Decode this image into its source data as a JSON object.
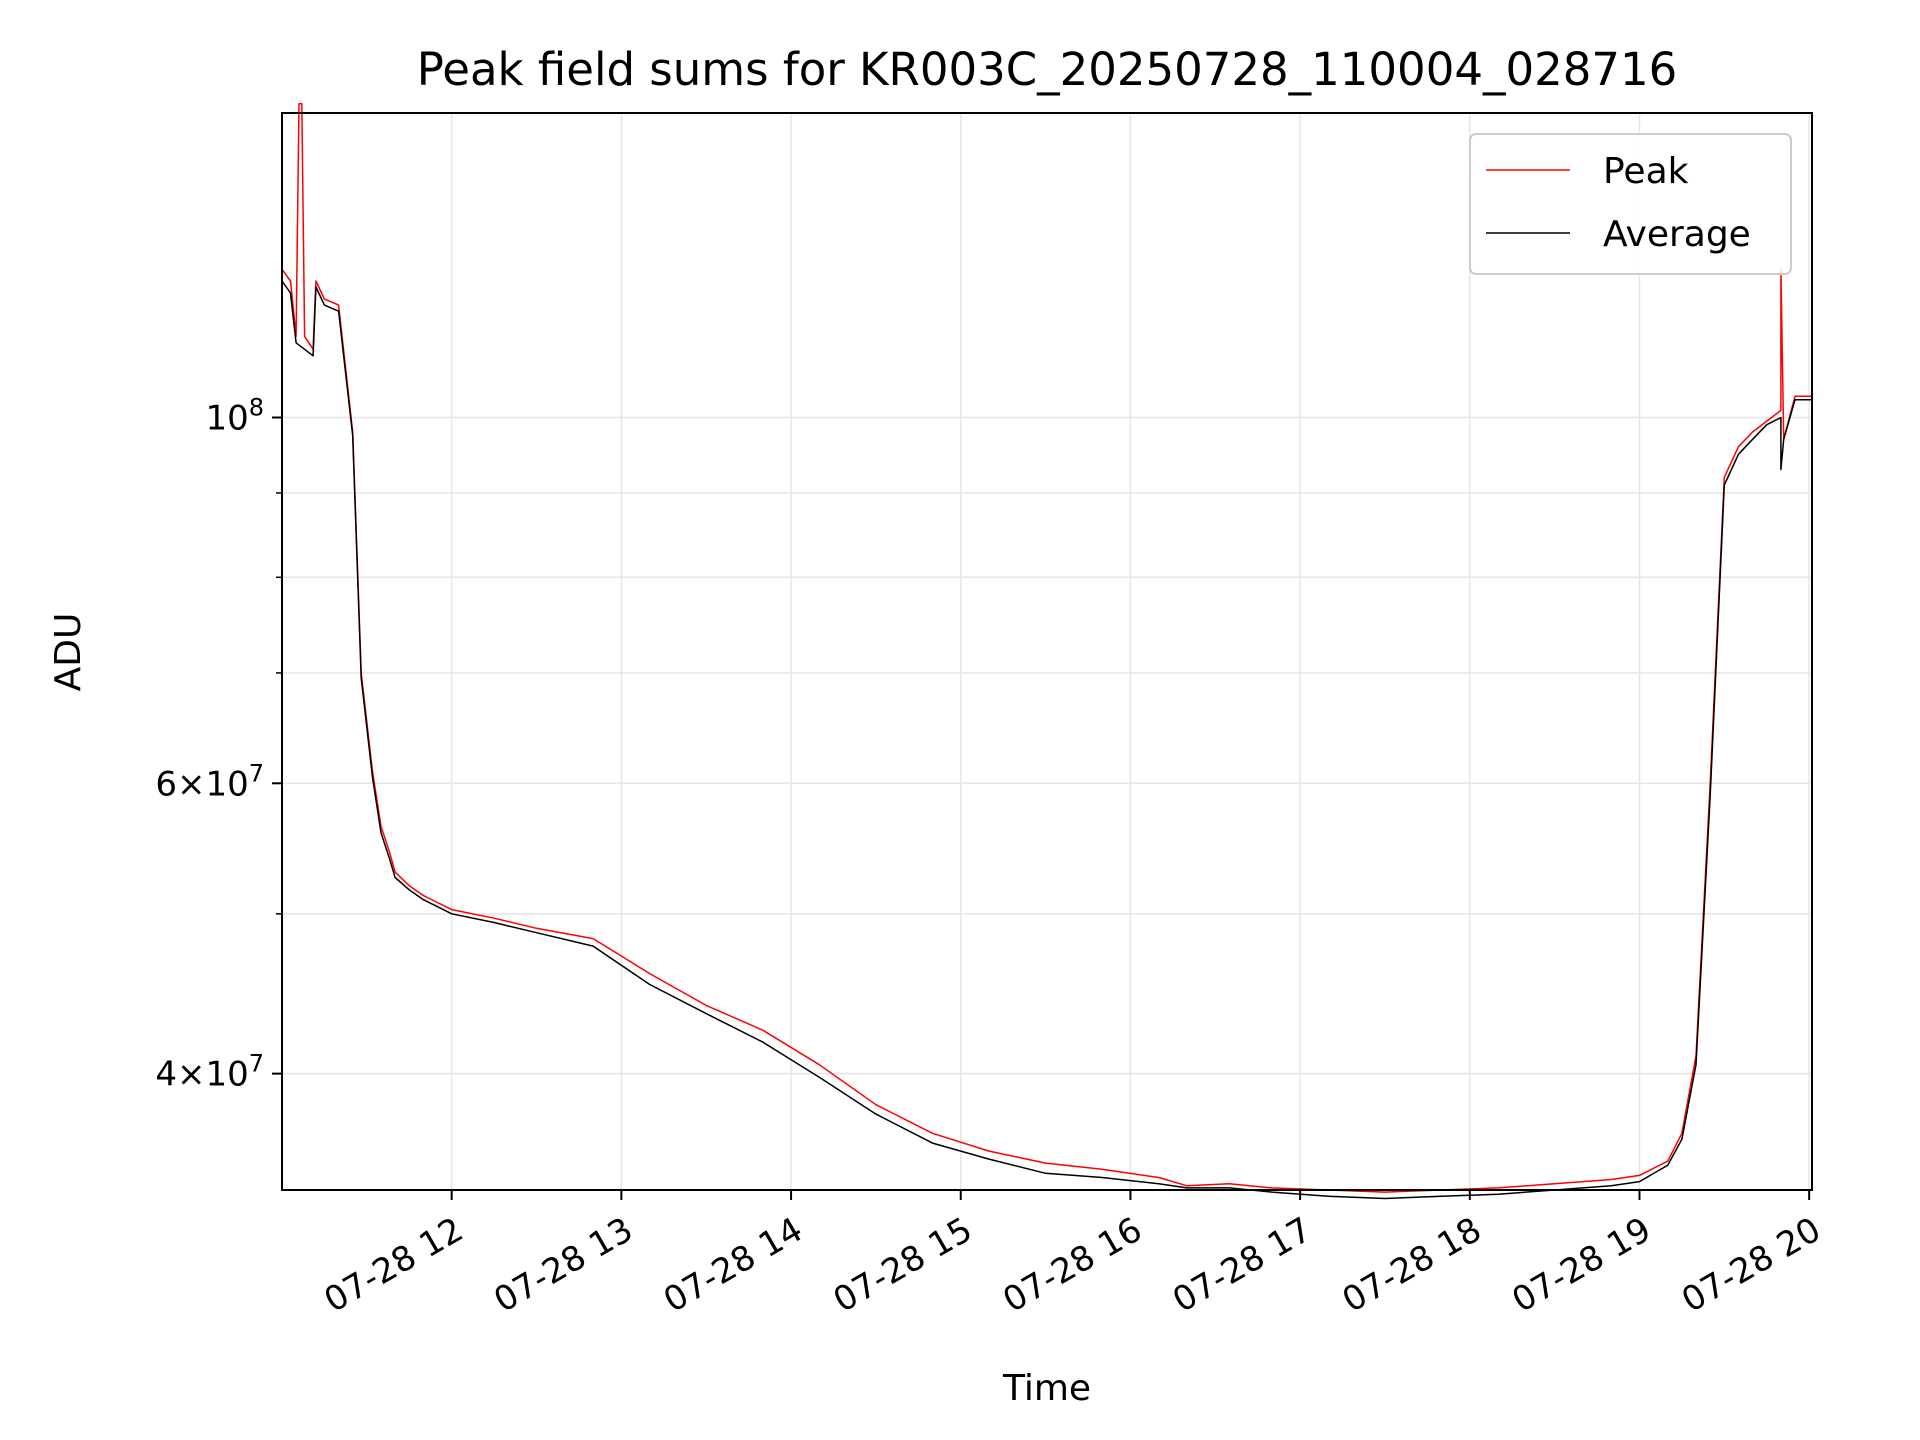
{
  "chart_data": {
    "type": "line",
    "title": "Peak field sums for KR003C_20250728_110004_028716",
    "xlabel": "Time",
    "ylabel": "ADU",
    "yscale": "log",
    "xlim": [
      "2025-07-28T11:00",
      "2025-07-28T20:01"
    ],
    "ylim": [
      34000000,
      153000000
    ],
    "grid": true,
    "legend_position": "top-right",
    "x_ticks": [
      {
        "time": "2025-07-28T12:00",
        "label": "07-28 12"
      },
      {
        "time": "2025-07-28T13:00",
        "label": "07-28 13"
      },
      {
        "time": "2025-07-28T14:00",
        "label": "07-28 14"
      },
      {
        "time": "2025-07-28T15:00",
        "label": "07-28 15"
      },
      {
        "time": "2025-07-28T16:00",
        "label": "07-28 16"
      },
      {
        "time": "2025-07-28T17:00",
        "label": "07-28 17"
      },
      {
        "time": "2025-07-28T18:00",
        "label": "07-28 18"
      },
      {
        "time": "2025-07-28T19:00",
        "label": "07-28 19"
      },
      {
        "time": "2025-07-28T20:00",
        "label": "07-28 20"
      }
    ],
    "y_ticks_major": [
      {
        "value": 100000000,
        "mantissa": "",
        "base": "10",
        "exp": "8"
      },
      {
        "value": 60000000,
        "mantissa": "6×",
        "base": "10",
        "exp": "7"
      },
      {
        "value": 40000000,
        "mantissa": "4×",
        "base": "10",
        "exp": "7"
      }
    ],
    "y_ticks_minor": [
      40000000,
      50000000,
      60000000,
      70000000,
      80000000,
      90000000
    ],
    "series": [
      {
        "name": "Peak",
        "color": "#ff0000",
        "x": [
          "2025-07-28T11:00",
          "2025-07-28T11:03",
          "2025-07-28T11:05",
          "2025-07-28T11:06",
          "2025-07-28T11:07",
          "2025-07-28T11:08",
          "2025-07-28T11:11",
          "2025-07-28T11:12",
          "2025-07-28T11:15",
          "2025-07-28T11:20",
          "2025-07-28T11:25",
          "2025-07-28T11:28",
          "2025-07-28T11:32",
          "2025-07-28T11:35",
          "2025-07-28T11:38",
          "2025-07-28T11:40",
          "2025-07-28T11:45",
          "2025-07-28T11:50",
          "2025-07-28T11:55",
          "2025-07-28T12:00",
          "2025-07-28T12:15",
          "2025-07-28T12:30",
          "2025-07-28T12:50",
          "2025-07-28T13:10",
          "2025-07-28T13:30",
          "2025-07-28T13:50",
          "2025-07-28T14:10",
          "2025-07-28T14:30",
          "2025-07-28T14:50",
          "2025-07-28T15:10",
          "2025-07-28T15:30",
          "2025-07-28T15:50",
          "2025-07-28T16:10",
          "2025-07-28T16:20",
          "2025-07-28T16:35",
          "2025-07-28T16:50",
          "2025-07-28T17:10",
          "2025-07-28T17:30",
          "2025-07-28T17:50",
          "2025-07-28T18:10",
          "2025-07-28T18:30",
          "2025-07-28T18:50",
          "2025-07-28T19:00",
          "2025-07-28T19:10",
          "2025-07-28T19:15",
          "2025-07-28T19:20",
          "2025-07-28T19:25",
          "2025-07-28T19:30",
          "2025-07-28T19:35",
          "2025-07-28T19:40",
          "2025-07-28T19:45",
          "2025-07-28T19:50",
          "2025-07-28T19:50",
          "2025-07-28T19:51",
          "2025-07-28T19:55",
          "2025-07-28T20:01"
        ],
        "y": [
          123000000,
          121000000,
          112000000,
          155000000,
          155000000,
          112000000,
          110000000,
          121000000,
          118000000,
          117000000,
          98000000,
          70000000,
          61000000,
          56500000,
          54500000,
          53000000,
          52000000,
          51300000,
          50800000,
          50300000,
          49700000,
          49000000,
          48300000,
          46000000,
          44000000,
          42500000,
          40500000,
          38300000,
          36800000,
          35900000,
          35300000,
          35000000,
          34600000,
          34200000,
          34300000,
          34100000,
          34000000,
          33900000,
          34000000,
          34100000,
          34300000,
          34500000,
          34700000,
          35400000,
          36800000,
          41000000,
          60000000,
          92000000,
          96000000,
          98000000,
          99500000,
          101000000,
          123000000,
          97000000,
          103000000,
          103000000
        ]
      },
      {
        "name": "Average",
        "color": "#000000",
        "x": [
          "2025-07-28T11:00",
          "2025-07-28T11:03",
          "2025-07-28T11:05",
          "2025-07-28T11:08",
          "2025-07-28T11:11",
          "2025-07-28T11:12",
          "2025-07-28T11:15",
          "2025-07-28T11:20",
          "2025-07-28T11:25",
          "2025-07-28T11:28",
          "2025-07-28T11:32",
          "2025-07-28T11:35",
          "2025-07-28T11:38",
          "2025-07-28T11:40",
          "2025-07-28T11:45",
          "2025-07-28T11:50",
          "2025-07-28T11:55",
          "2025-07-28T12:00",
          "2025-07-28T12:15",
          "2025-07-28T12:30",
          "2025-07-28T12:50",
          "2025-07-28T13:10",
          "2025-07-28T13:30",
          "2025-07-28T13:50",
          "2025-07-28T14:10",
          "2025-07-28T14:30",
          "2025-07-28T14:50",
          "2025-07-28T15:10",
          "2025-07-28T15:30",
          "2025-07-28T15:50",
          "2025-07-28T16:10",
          "2025-07-28T16:20",
          "2025-07-28T16:35",
          "2025-07-28T16:50",
          "2025-07-28T17:10",
          "2025-07-28T17:30",
          "2025-07-28T17:50",
          "2025-07-28T18:10",
          "2025-07-28T18:30",
          "2025-07-28T18:50",
          "2025-07-28T19:00",
          "2025-07-28T19:10",
          "2025-07-28T19:15",
          "2025-07-28T19:20",
          "2025-07-28T19:25",
          "2025-07-28T19:30",
          "2025-07-28T19:35",
          "2025-07-28T19:40",
          "2025-07-28T19:45",
          "2025-07-28T19:50",
          "2025-07-28T19:50",
          "2025-07-28T19:51",
          "2025-07-28T19:55",
          "2025-07-28T20:01"
        ],
        "y": [
          121000000,
          119000000,
          111000000,
          110000000,
          109000000,
          120000000,
          117000000,
          116000000,
          97500000,
          69500000,
          60500000,
          56000000,
          54000000,
          52600000,
          51700000,
          51000000,
          50500000,
          50000000,
          49400000,
          48700000,
          47800000,
          45300000,
          43500000,
          41800000,
          39800000,
          37800000,
          36300000,
          35500000,
          34800000,
          34600000,
          34300000,
          34100000,
          34100000,
          33900000,
          33700000,
          33600000,
          33700000,
          33800000,
          34000000,
          34200000,
          34400000,
          35200000,
          36500000,
          40500000,
          59000000,
          91000000,
          95000000,
          97000000,
          99000000,
          100000000,
          93000000,
          97000000,
          102500000,
          102500000
        ]
      }
    ]
  }
}
